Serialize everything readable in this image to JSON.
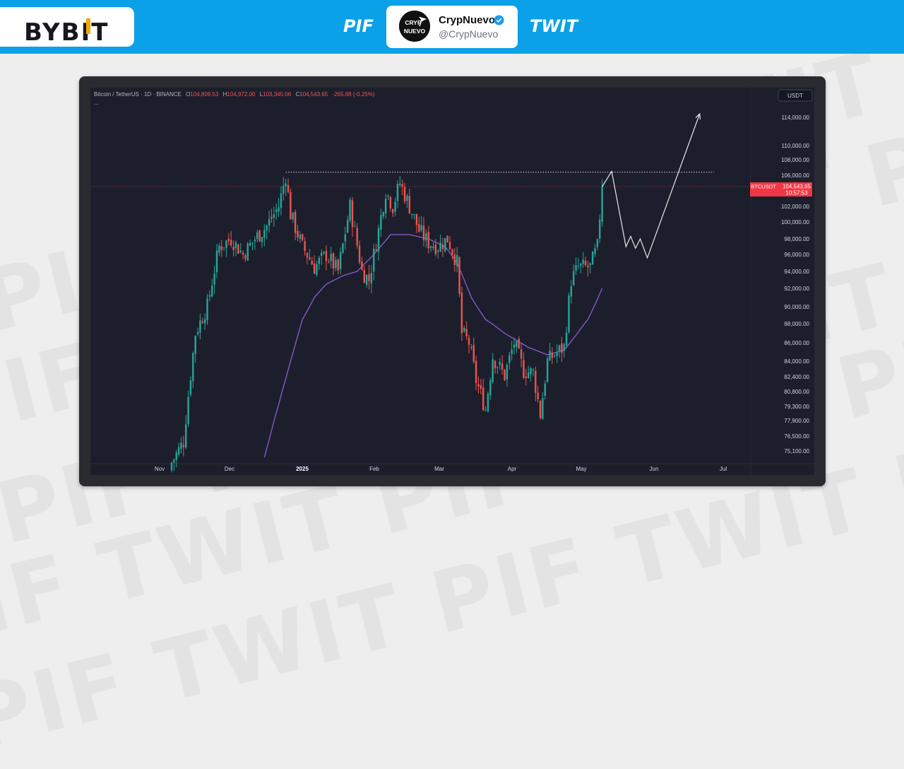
{
  "header": {
    "logo": "BYBIT",
    "tag_left": "PIF",
    "tag_right": "TWIT",
    "profile_name": "CrypNuevo",
    "profile_handle": "@CrypNuevo",
    "avatar_text": [
      "CRYP",
      "NUEVO"
    ]
  },
  "watermark": "PIF TWIT",
  "chart_header": {
    "symbol": "Bitcoin / TetherUS · 1D · BINANCE",
    "o_label": "O",
    "o_value": "104,809.53",
    "h_label": "H",
    "h_value": "104,972.00",
    "l_label": "L",
    "l_value": "103,345.06",
    "c_label": "C",
    "c_value": "104,543.65",
    "change": "-265.88 (-0.25%)",
    "more": "...",
    "currency": "USDT"
  },
  "price_label": {
    "ticker": "BTCUSDT",
    "price": "104,543.65",
    "countdown": "10:57:53"
  },
  "colors": {
    "up": "#26a69a",
    "down": "#ef5350",
    "ma": "#8e5ad6",
    "header_bg": "#0ba1e8"
  },
  "chart_data": {
    "type": "candlestick",
    "y_ticks": [
      75100,
      76500,
      77900,
      79300,
      80800,
      82400,
      84000,
      86000,
      88000,
      90000,
      92000,
      94000,
      96000,
      98000,
      100000,
      102000,
      106000,
      108000,
      110000,
      114000
    ],
    "y_tick_labels": [
      "75,100.00",
      "76,500.00",
      "77,900.00",
      "79,300.00",
      "80,800.00",
      "82,400.00",
      "84,000.00",
      "86,000.00",
      "88,000.00",
      "90,000.00",
      "92,000.00",
      "94,000.00",
      "96,000.00",
      "98,000.00",
      "100,000.00",
      "102,000.00",
      "106,000.00",
      "108,000.00",
      "110,000.00",
      "114,000.00"
    ],
    "x_labels": [
      "Nov",
      "Dec",
      "2025",
      "Feb",
      "Mar",
      "Apr",
      "May",
      "Jun",
      "Jul"
    ],
    "last_price": 104543.65,
    "resistance_level": 106400,
    "candle_count": 182,
    "close_anchors": [
      [
        0,
        74000
      ],
      [
        5,
        76000
      ],
      [
        10,
        87000
      ],
      [
        15,
        90000
      ],
      [
        20,
        97000
      ],
      [
        25,
        98000
      ],
      [
        30,
        96000
      ],
      [
        35,
        98000
      ],
      [
        40,
        99500
      ],
      [
        45,
        102000
      ],
      [
        48,
        106000
      ],
      [
        50,
        101000
      ],
      [
        55,
        97000
      ],
      [
        60,
        94500
      ],
      [
        65,
        96000
      ],
      [
        70,
        94000
      ],
      [
        75,
        102000
      ],
      [
        80,
        94000
      ],
      [
        83,
        93000
      ],
      [
        87,
        99000
      ],
      [
        90,
        104000
      ],
      [
        93,
        102000
      ],
      [
        96,
        105000
      ],
      [
        100,
        102000
      ],
      [
        104,
        99000
      ],
      [
        108,
        97500
      ],
      [
        112,
        97000
      ],
      [
        116,
        98000
      ],
      [
        120,
        95000
      ],
      [
        122,
        87000
      ],
      [
        125,
        86000
      ],
      [
        128,
        82000
      ],
      [
        132,
        79000
      ],
      [
        135,
        84500
      ],
      [
        140,
        82500
      ],
      [
        144,
        86000
      ],
      [
        148,
        83000
      ],
      [
        152,
        82800
      ],
      [
        155,
        78500
      ],
      [
        158,
        84000
      ],
      [
        162,
        85000
      ],
      [
        165,
        85500
      ],
      [
        168,
        93000
      ],
      [
        171,
        94500
      ],
      [
        176,
        94500
      ],
      [
        179,
        97000
      ],
      [
        181,
        104543.65
      ]
    ],
    "ma_anchors": [
      [
        39,
        74500
      ],
      [
        45,
        79500
      ],
      [
        50,
        84000
      ],
      [
        55,
        88500
      ],
      [
        60,
        91000
      ],
      [
        65,
        92500
      ],
      [
        72,
        93500
      ],
      [
        78,
        94000
      ],
      [
        85,
        96000
      ],
      [
        92,
        98500
      ],
      [
        100,
        98500
      ],
      [
        108,
        98000
      ],
      [
        115,
        97000
      ],
      [
        120,
        95000
      ],
      [
        126,
        91000
      ],
      [
        132,
        88500
      ],
      [
        140,
        87000
      ],
      [
        150,
        85500
      ],
      [
        158,
        84700
      ],
      [
        165,
        85200
      ],
      [
        170,
        86800
      ],
      [
        175,
        88500
      ],
      [
        181,
        92000
      ]
    ],
    "projection": [
      [
        181,
        104543.65
      ],
      [
        185,
        106500
      ],
      [
        191,
        97000
      ],
      [
        193,
        98300
      ],
      [
        195,
        96800
      ],
      [
        197,
        98000
      ],
      [
        200,
        95600
      ],
      [
        222,
        114500
      ]
    ]
  }
}
